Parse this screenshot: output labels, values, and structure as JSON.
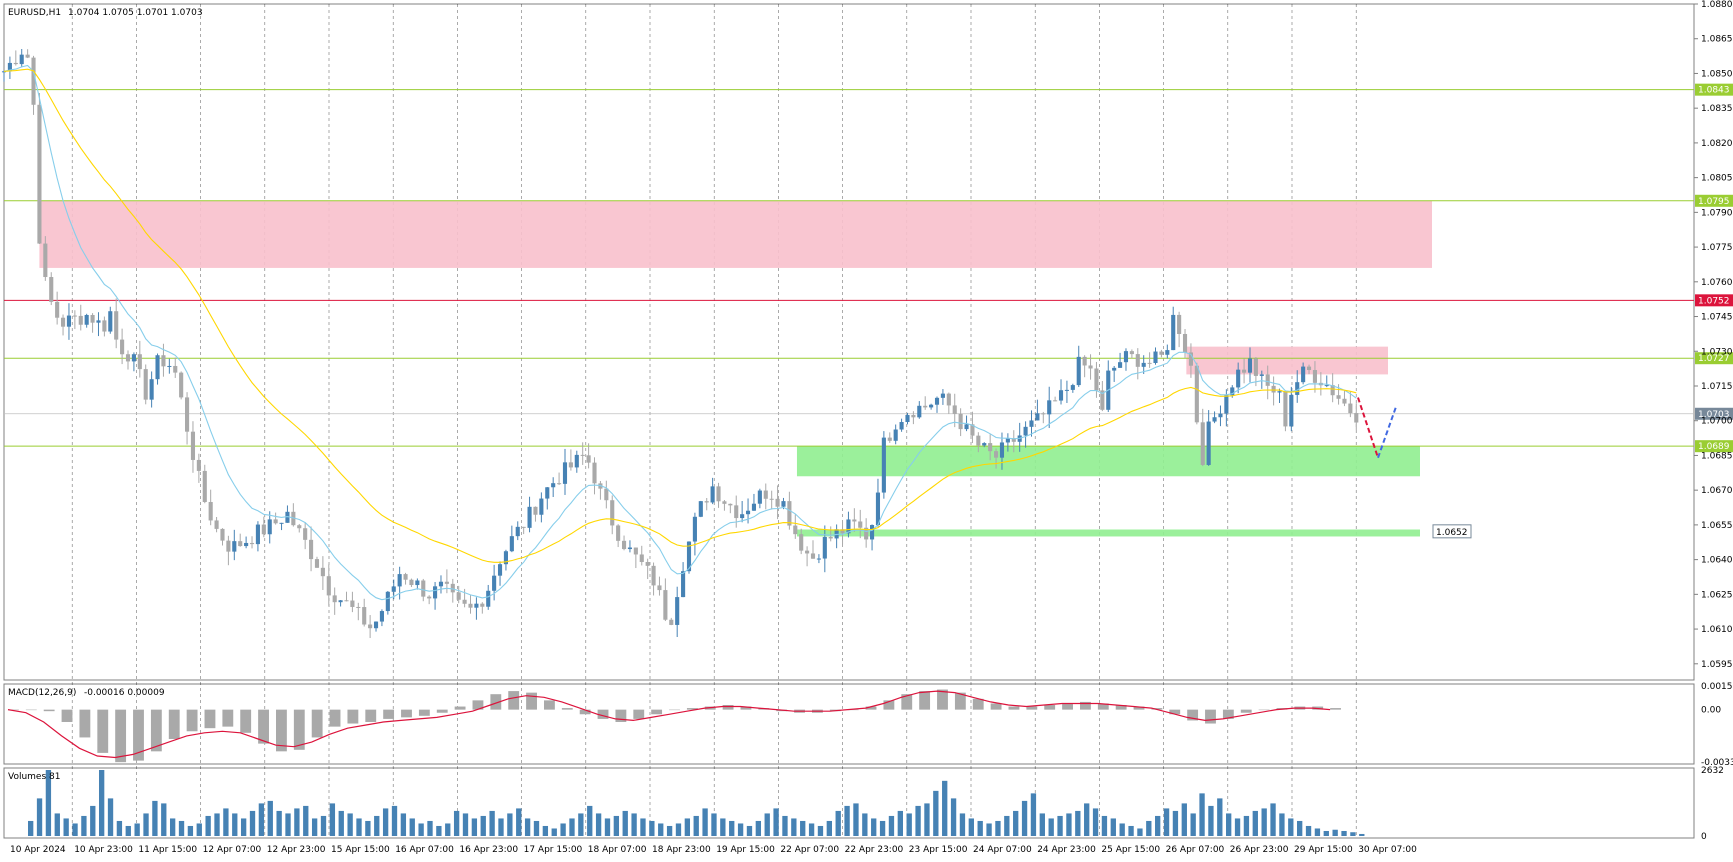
{
  "header": {
    "symbol": "EURUSD,H1",
    "ohlc": "1.0704 1.0705 1.0701 1.0703"
  },
  "chart_data": [
    {
      "type": "candlestick",
      "symbol": "EURUSD",
      "timeframe": "H1",
      "ylim": [
        1.0588,
        1.088
      ],
      "y_ticks": [
        "1.0880",
        "1.0865",
        "1.0850",
        "1.0835",
        "1.0820",
        "1.0805",
        "1.0790",
        "1.0775",
        "1.0760",
        "1.0745",
        "1.0730",
        "1.0715",
        "1.0700",
        "1.0685",
        "1.0670",
        "1.0655",
        "1.0640",
        "1.0625",
        "1.0610",
        "1.0595"
      ],
      "x_ticks": [
        "10 Apr 2024",
        "10 Apr 23:00",
        "11 Apr 15:00",
        "12 Apr 07:00",
        "12 Apr 23:00",
        "15 Apr 15:00",
        "16 Apr 07:00",
        "16 Apr 23:00",
        "17 Apr 15:00",
        "18 Apr 07:00",
        "18 Apr 23:00",
        "19 Apr 15:00",
        "22 Apr 07:00",
        "22 Apr 23:00",
        "23 Apr 15:00",
        "24 Apr 07:00",
        "24 Apr 23:00",
        "25 Apr 15:00",
        "26 Apr 07:00",
        "26 Apr 23:00",
        "29 Apr 15:00",
        "30 Apr 07:00"
      ],
      "levels": [
        {
          "price": 1.0843,
          "label": "1.0843",
          "color": "#9acd32"
        },
        {
          "price": 1.0795,
          "label": "1.0795",
          "color": "#9acd32"
        },
        {
          "price": 1.0752,
          "label": "1.0752",
          "color": "#dc143c"
        },
        {
          "price": 1.0727,
          "label": "1.0727",
          "color": "#9acd32"
        },
        {
          "price": 1.0689,
          "label": "1.0689",
          "color": "#9acd32"
        }
      ],
      "current_price": {
        "price": 1.0703,
        "label": "1.0703",
        "color": "#778899"
      },
      "marker_label": {
        "price": 1.0652,
        "label": "1.0652"
      },
      "zones": [
        {
          "kind": "resistance",
          "color": "#f8c0cc",
          "from_price": 1.0795,
          "to_price": 1.0766
        },
        {
          "kind": "resistance",
          "color": "#f8c0cc",
          "from_price": 1.0732,
          "to_price": 1.072
        },
        {
          "kind": "support",
          "color": "#90ee90",
          "from_price": 1.0689,
          "to_price": 1.0676
        },
        {
          "kind": "support",
          "color": "#90ee90",
          "from_price": 1.0653,
          "to_price": 1.065
        }
      ],
      "moving_averages": [
        {
          "color": "#87ceeb"
        },
        {
          "color": "#ffd700"
        }
      ],
      "candles_colors": {
        "up": "#4682b4",
        "down": "#a9a9a9"
      },
      "forecast": {
        "down_color": "#dc143c",
        "up_color": "#4169e1",
        "path": [
          1.071,
          1.0684,
          1.0706
        ]
      },
      "close_path": [
        [
          0,
          1.0851
        ],
        [
          0.015,
          1.0862
        ],
        [
          0.02,
          1.0848
        ],
        [
          0.025,
          1.078
        ],
        [
          0.03,
          1.0755
        ],
        [
          0.04,
          1.0742
        ],
        [
          0.05,
          1.0744
        ],
        [
          0.06,
          1.0746
        ],
        [
          0.07,
          1.074
        ],
        [
          0.075,
          1.0747
        ],
        [
          0.08,
          1.0733
        ],
        [
          0.09,
          1.0728
        ],
        [
          0.1,
          1.0712
        ],
        [
          0.11,
          1.0727
        ],
        [
          0.12,
          1.0723
        ],
        [
          0.13,
          1.0695
        ],
        [
          0.14,
          1.0668
        ],
        [
          0.15,
          1.0653
        ],
        [
          0.16,
          1.0645
        ],
        [
          0.17,
          1.0648
        ],
        [
          0.18,
          1.0652
        ],
        [
          0.19,
          1.0655
        ],
        [
          0.2,
          1.066
        ],
        [
          0.21,
          1.065
        ],
        [
          0.22,
          1.064
        ],
        [
          0.23,
          1.0627
        ],
        [
          0.24,
          1.0622
        ],
        [
          0.25,
          1.0616
        ],
        [
          0.26,
          1.061
        ],
        [
          0.27,
          1.0622
        ],
        [
          0.28,
          1.0635
        ],
        [
          0.29,
          1.063
        ],
        [
          0.3,
          1.0625
        ],
        [
          0.31,
          1.0628
        ],
        [
          0.32,
          1.062
        ],
        [
          0.33,
          1.0618
        ],
        [
          0.34,
          1.0625
        ],
        [
          0.35,
          1.064
        ],
        [
          0.36,
          1.065
        ],
        [
          0.37,
          1.0658
        ],
        [
          0.38,
          1.0668
        ],
        [
          0.39,
          1.0675
        ],
        [
          0.4,
          1.068
        ],
        [
          0.41,
          1.0685
        ],
        [
          0.415,
          1.068
        ],
        [
          0.42,
          1.067
        ],
        [
          0.43,
          1.0656
        ],
        [
          0.44,
          1.0645
        ],
        [
          0.45,
          1.0638
        ],
        [
          0.46,
          1.063
        ],
        [
          0.465,
          1.062
        ],
        [
          0.47,
          1.0612
        ],
        [
          0.48,
          1.064
        ],
        [
          0.49,
          1.066
        ],
        [
          0.5,
          1.0672
        ],
        [
          0.51,
          1.0665
        ],
        [
          0.52,
          1.066
        ],
        [
          0.53,
          1.0666
        ],
        [
          0.54,
          1.067
        ],
        [
          0.55,
          1.0665
        ],
        [
          0.56,
          1.065
        ],
        [
          0.57,
          1.064
        ],
        [
          0.58,
          1.0648
        ],
        [
          0.59,
          1.0652
        ],
        [
          0.6,
          1.0655
        ],
        [
          0.61,
          1.065
        ],
        [
          0.615,
          1.066
        ],
        [
          0.62,
          1.0688
        ],
        [
          0.63,
          1.07
        ],
        [
          0.64,
          1.0705
        ],
        [
          0.65,
          1.0706
        ],
        [
          0.66,
          1.071
        ],
        [
          0.67,
          1.0705
        ],
        [
          0.68,
          1.0695
        ],
        [
          0.69,
          1.0688
        ],
        [
          0.7,
          1.0684
        ],
        [
          0.71,
          1.069
        ],
        [
          0.72,
          1.0695
        ],
        [
          0.73,
          1.07
        ],
        [
          0.74,
          1.0706
        ],
        [
          0.75,
          1.0713
        ],
        [
          0.76,
          1.0725
        ],
        [
          0.77,
          1.072
        ],
        [
          0.775,
          1.07
        ],
        [
          0.78,
          1.072
        ],
        [
          0.79,
          1.0727
        ],
        [
          0.8,
          1.0727
        ],
        [
          0.81,
          1.0725
        ],
        [
          0.82,
          1.0728
        ],
        [
          0.825,
          1.0745
        ],
        [
          0.83,
          1.074
        ],
        [
          0.84,
          1.072
        ],
        [
          0.845,
          1.068
        ],
        [
          0.85,
          1.0695
        ],
        [
          0.86,
          1.0708
        ],
        [
          0.87,
          1.072
        ],
        [
          0.88,
          1.0725
        ],
        [
          0.89,
          1.0715
        ],
        [
          0.9,
          1.0712
        ],
        [
          0.905,
          1.07
        ],
        [
          0.91,
          1.0715
        ],
        [
          0.92,
          1.0722
        ],
        [
          0.93,
          1.0718
        ],
        [
          0.94,
          1.0712
        ],
        [
          0.95,
          1.0705
        ],
        [
          0.955,
          1.0703
        ]
      ]
    },
    {
      "type": "histogram",
      "name": "MACD(12,26,9)",
      "values_text": "-0.00016 0.00009",
      "y_ticks": [
        "0.00153",
        "0.00",
        "-0.00339"
      ],
      "ylim": [
        -0.00339,
        0.00153
      ],
      "bar_color": "#a9a9a9",
      "signal_color": "#dc143c",
      "hist": [
        0,
        0,
        -0.0001,
        -0.0008,
        -0.0018,
        -0.0028,
        -0.0034,
        -0.0033,
        -0.0027,
        -0.0019,
        -0.0014,
        -0.0012,
        -0.0011,
        -0.0015,
        -0.0022,
        -0.0027,
        -0.0026,
        -0.0018,
        -0.0011,
        -0.0009,
        -0.0008,
        -0.0006,
        -0.0005,
        -0.0004,
        -0.0002,
        0.0002,
        0.0006,
        0.001,
        0.0012,
        0.0011,
        0.0006,
        0.0001,
        -0.0003,
        -0.0006,
        -0.0008,
        -0.0006,
        -0.0003,
        0.0,
        0.0001,
        0.0002,
        0.0003,
        0.0002,
        0.0001,
        -0.0001,
        -0.0002,
        -0.0002,
        -0.0001,
        0.0,
        0.0002,
        0.0006,
        0.001,
        0.0012,
        0.0013,
        0.0011,
        0.0007,
        0.0004,
        0.0002,
        0.0002,
        0.0003,
        0.0004,
        0.0005,
        0.0004,
        0.0003,
        0.0002,
        0.0001,
        -0.0003,
        -0.0007,
        -0.0009,
        -0.0006,
        -0.0002,
        0.0,
        0.0001,
        0.0002,
        0.0002,
        0.0001
      ],
      "signal": [
        0,
        -0.0002,
        -0.0008,
        -0.0017,
        -0.0025,
        -0.003,
        -0.0031,
        -0.0029,
        -0.0025,
        -0.0021,
        -0.0017,
        -0.0015,
        -0.0014,
        -0.0015,
        -0.0019,
        -0.0023,
        -0.0024,
        -0.0021,
        -0.0016,
        -0.0012,
        -0.001,
        -0.0008,
        -0.0007,
        -0.0006,
        -0.0005,
        -0.0003,
        -0.0001,
        0.0003,
        0.0007,
        0.0009,
        0.0008,
        0.0005,
        0.0001,
        -0.0003,
        -0.0006,
        -0.0007,
        -0.0005,
        -0.0003,
        -0.0001,
        0.0001,
        0.0002,
        0.0002,
        0.0001,
        0.0,
        -0.0001,
        -0.0001,
        -0.0001,
        0.0,
        0.0001,
        0.0004,
        0.0008,
        0.0011,
        0.0012,
        0.0011,
        0.0008,
        0.0005,
        0.0003,
        0.0002,
        0.0003,
        0.0004,
        0.0004,
        0.0004,
        0.0003,
        0.0002,
        0.0001,
        -0.0002,
        -0.0005,
        -0.0007,
        -0.0006,
        -0.0004,
        -0.0002,
        0.0,
        0.0001,
        0.0001,
        0.0
      ]
    },
    {
      "type": "bar",
      "name": "Volumes",
      "values_text": "81",
      "y_ticks": [
        "2632",
        "0"
      ],
      "ylim": [
        0,
        2632
      ],
      "bar_color": "#4682b4",
      "values": [
        600,
        1500,
        2632,
        900,
        700,
        500,
        800,
        1200,
        2632,
        1500,
        600,
        400,
        500,
        900,
        1400,
        1300,
        700,
        600,
        400,
        500,
        800,
        900,
        1100,
        900,
        700,
        1000,
        1300,
        1400,
        1000,
        900,
        1100,
        1200,
        700,
        800,
        1300,
        1000,
        900,
        700,
        600,
        800,
        1100,
        1200,
        900,
        700,
        500,
        600,
        400,
        500,
        1000,
        900,
        700,
        800,
        1000,
        700,
        900,
        1100,
        700,
        600,
        400,
        300,
        500,
        700,
        900,
        1200,
        900,
        700,
        800,
        1000,
        900,
        700,
        600,
        500,
        400,
        500,
        700,
        800,
        1100,
        900,
        700,
        600,
        500,
        400,
        600,
        900,
        1100,
        800,
        700,
        600,
        500,
        400,
        600,
        1000,
        1200,
        1300,
        900,
        700,
        600,
        800,
        1000,
        900,
        1200,
        1300,
        1800,
        2200,
        1500,
        900,
        700,
        600,
        500,
        600,
        800,
        1000,
        1400,
        1700,
        900,
        700,
        800,
        900,
        1000,
        1300,
        1100,
        800,
        700,
        500,
        400,
        300,
        600,
        800,
        1100,
        1000,
        1300,
        900,
        1700,
        1200,
        1500,
        900,
        700,
        800,
        1000,
        1100,
        1300,
        900,
        700,
        600,
        400,
        300,
        200,
        250,
        200,
        150,
        81
      ]
    }
  ]
}
